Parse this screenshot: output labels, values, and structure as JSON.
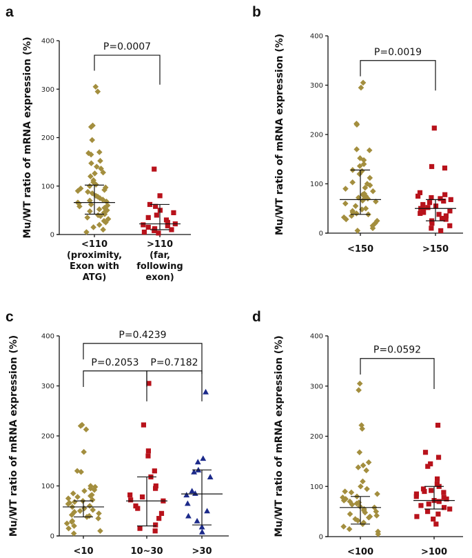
{
  "chart_data": [
    {
      "panel": "a",
      "type": "scatter",
      "ylabel": "Mu/WT ratio of mRNA expression (%)",
      "ylim": [
        0,
        400
      ],
      "yticks": [
        0,
        100,
        200,
        300,
        400
      ],
      "groups": [
        {
          "label_lines": [
            "<110",
            "(proximity,",
            "Exon with",
            "ATG)"
          ],
          "color": "#a38e3e",
          "marker": "diamond",
          "median": 66,
          "err_low": 42,
          "err_high": 102,
          "values": [
            305,
            295,
            225,
            222,
            195,
            170,
            168,
            165,
            152,
            147,
            140,
            136,
            128,
            126,
            120,
            112,
            108,
            103,
            100,
            97,
            95,
            92,
            90,
            88,
            85,
            80,
            78,
            75,
            72,
            70,
            68,
            66,
            64,
            62,
            60,
            58,
            55,
            52,
            50,
            48,
            45,
            42,
            40,
            38,
            35,
            32,
            28,
            25,
            20,
            15,
            10,
            5
          ]
        },
        {
          "label_lines": [
            ">110",
            "(far,",
            "following",
            "exon)"
          ],
          "color": "#b8121b",
          "marker": "square",
          "median": 22,
          "err_low": 10,
          "err_high": 62,
          "values": [
            135,
            80,
            62,
            58,
            50,
            45,
            40,
            35,
            30,
            25,
            22,
            20,
            18,
            15,
            12,
            10,
            8,
            5,
            3
          ]
        }
      ],
      "brackets": [
        {
          "from": 0,
          "to": 1,
          "y": 370,
          "text": "P=0.0007"
        }
      ]
    },
    {
      "panel": "b",
      "type": "scatter",
      "ylabel": "Mu/WT ratio of mRNA expression (%)",
      "ylim": [
        0,
        400
      ],
      "yticks": [
        0,
        100,
        200,
        300,
        400
      ],
      "groups": [
        {
          "label_lines": [
            "<150"
          ],
          "color": "#a38e3e",
          "marker": "diamond",
          "median": 68,
          "err_low": 38,
          "err_high": 128,
          "values": [
            305,
            295,
            222,
            220,
            170,
            168,
            152,
            148,
            140,
            136,
            128,
            126,
            120,
            112,
            103,
            100,
            97,
            92,
            90,
            85,
            80,
            78,
            75,
            72,
            70,
            68,
            66,
            64,
            60,
            55,
            50,
            48,
            45,
            42,
            40,
            38,
            35,
            32,
            28,
            25,
            20,
            15,
            10,
            5
          ]
        },
        {
          "label_lines": [
            ">150"
          ],
          "color": "#b8121b",
          "marker": "square",
          "median": 50,
          "err_low": 25,
          "err_high": 68,
          "values": [
            213,
            135,
            132,
            82,
            78,
            75,
            72,
            70,
            68,
            65,
            62,
            58,
            55,
            52,
            50,
            48,
            45,
            42,
            40,
            38,
            35,
            30,
            28,
            25,
            20,
            15,
            10,
            5
          ]
        }
      ],
      "brackets": [
        {
          "from": 0,
          "to": 1,
          "y": 350,
          "text": "P=0.0019"
        }
      ]
    },
    {
      "panel": "c",
      "type": "scatter",
      "ylabel": "Mu/WT ratio of mRNA expression (%)",
      "ylim": [
        0,
        400
      ],
      "yticks": [
        0,
        100,
        200,
        300,
        400
      ],
      "groups": [
        {
          "label_lines": [
            "<10"
          ],
          "color": "#a38e3e",
          "marker": "diamond",
          "median": 58,
          "err_low": 38,
          "err_high": 70,
          "values": [
            222,
            220,
            213,
            168,
            130,
            128,
            100,
            98,
            95,
            92,
            90,
            85,
            82,
            80,
            78,
            75,
            72,
            70,
            68,
            66,
            64,
            60,
            58,
            55,
            52,
            50,
            48,
            45,
            42,
            40,
            38,
            35,
            30,
            28,
            25,
            20,
            15,
            10,
            5
          ]
        },
        {
          "label_lines": [
            "10~30"
          ],
          "color": "#b8121b",
          "marker": "square",
          "median": 70,
          "err_low": 20,
          "err_high": 118,
          "values": [
            305,
            222,
            170,
            160,
            130,
            118,
            100,
            95,
            82,
            78,
            72,
            70,
            60,
            55,
            45,
            35,
            22,
            15,
            10
          ]
        },
        {
          "label_lines": [
            ">30"
          ],
          "color": "#1c2a8a",
          "marker": "triangle",
          "median": 84,
          "err_low": 22,
          "err_high": 132,
          "values": [
            288,
            155,
            148,
            132,
            128,
            118,
            90,
            85,
            82,
            65,
            50,
            40,
            30,
            18,
            8
          ]
        }
      ],
      "brackets": [
        {
          "from": 0,
          "to": 1,
          "y": 330,
          "text": "P=0.2053"
        },
        {
          "from": 1,
          "to": 2,
          "y": 330,
          "text": "P=0.7182"
        },
        {
          "from": 0,
          "to": 2,
          "y": 385,
          "text": "P=0.4239"
        }
      ]
    },
    {
      "panel": "d",
      "type": "scatter",
      "ylabel": "Mu/WT ratio of mRNA expression (%)",
      "ylim": [
        0,
        400
      ],
      "yticks": [
        0,
        100,
        200,
        300,
        400
      ],
      "groups": [
        {
          "label_lines": [
            "<100"
          ],
          "color": "#a38e3e",
          "marker": "diamond",
          "median": 58,
          "err_low": 25,
          "err_high": 80,
          "values": [
            305,
            292,
            222,
            215,
            168,
            148,
            142,
            138,
            132,
            110,
            100,
            95,
            90,
            88,
            85,
            80,
            78,
            75,
            72,
            70,
            68,
            66,
            64,
            60,
            58,
            55,
            52,
            50,
            48,
            45,
            42,
            40,
            38,
            35,
            32,
            28,
            25,
            20,
            15,
            10,
            5
          ]
        },
        {
          "label_lines": [
            ">100"
          ],
          "color": "#b8121b",
          "marker": "square",
          "median": 72,
          "err_low": 55,
          "err_high": 100,
          "values": [
            222,
            168,
            158,
            145,
            140,
            115,
            105,
            100,
            95,
            92,
            90,
            88,
            85,
            80,
            78,
            75,
            72,
            70,
            65,
            62,
            58,
            55,
            50,
            45,
            40,
            35,
            25
          ]
        }
      ],
      "brackets": [
        {
          "from": 0,
          "to": 1,
          "y": 355,
          "text": "P=0.0592"
        }
      ]
    }
  ]
}
